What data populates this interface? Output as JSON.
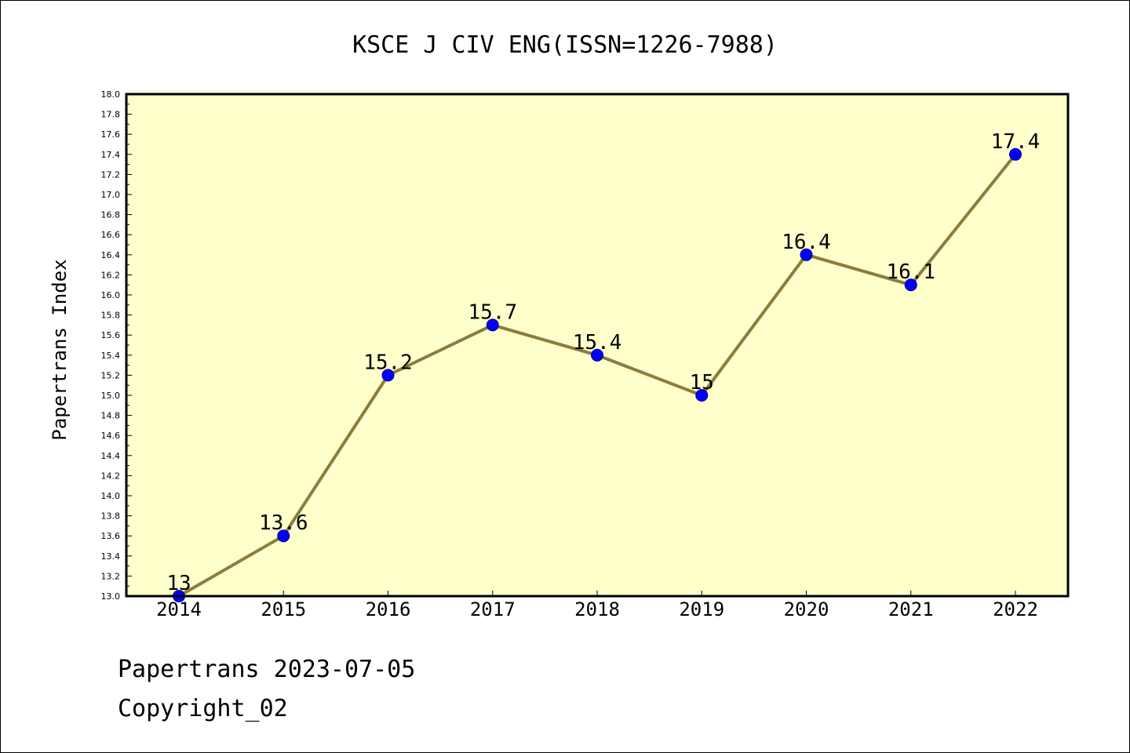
{
  "chart_data": {
    "type": "line",
    "title": "KSCE J CIV ENG(ISSN=1226-7988)",
    "ylabel": "Papertrans Index",
    "xlabel": "",
    "categories": [
      "2014",
      "2015",
      "2016",
      "2017",
      "2018",
      "2019",
      "2020",
      "2021",
      "2022"
    ],
    "series": [
      {
        "values": [
          13.0,
          13.6,
          15.2,
          15.7,
          15.4,
          15.0,
          16.4,
          16.1,
          17.4
        ],
        "data_labels": [
          "13",
          "13.6",
          "15.2",
          "15.7",
          "15.4",
          "15",
          "16.4",
          "16.1",
          "17.4"
        ]
      }
    ],
    "ylim": [
      13.0,
      18.0
    ],
    "y_major_step": 0.2,
    "y_tick_labels": [
      "13.0",
      "13.2",
      "13.4",
      "13.6",
      "13.8",
      "14.0",
      "14.2",
      "14.4",
      "14.6",
      "14.8",
      "15.0",
      "15.2",
      "15.4",
      "15.6",
      "15.8",
      "16.0",
      "16.2",
      "16.4",
      "16.6",
      "16.8",
      "17.0",
      "17.2",
      "17.4",
      "17.6",
      "17.8",
      "18.0"
    ],
    "grid": false,
    "colors": {
      "plot_background": "#ffffcc",
      "line": "#8b7d3a",
      "marker_fill": "#0000ff",
      "marker_edge": "#00008b"
    }
  },
  "footer": {
    "source_line": "Papertrans 2023-07-05",
    "copyright_line": "Copyright_02"
  }
}
